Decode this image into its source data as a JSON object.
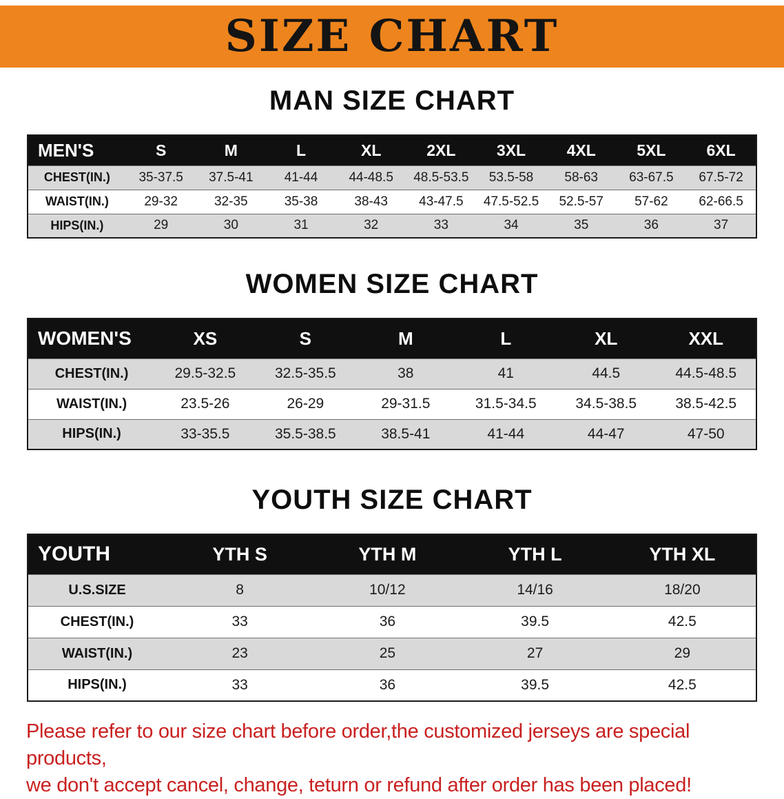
{
  "banner": {
    "title": "SIZE CHART",
    "bg_color": "#ee841d",
    "text_color": "#141414"
  },
  "sections": {
    "men": {
      "title": "MAN SIZE CHART",
      "table": {
        "corner": "MEN'S",
        "columns": [
          "S",
          "M",
          "L",
          "XL",
          "2XL",
          "3XL",
          "4XL",
          "5XL",
          "6XL"
        ],
        "rows": [
          {
            "label": "CHEST(IN.)",
            "values": [
              "35-37.5",
              "37.5-41",
              "41-44",
              "44-48.5",
              "48.5-53.5",
              "53.5-58",
              "58-63",
              "63-67.5",
              "67.5-72"
            ]
          },
          {
            "label": "WAIST(IN.)",
            "values": [
              "29-32",
              "32-35",
              "35-38",
              "38-43",
              "43-47.5",
              "47.5-52.5",
              "52.5-57",
              "57-62",
              "62-66.5"
            ]
          },
          {
            "label": "HIPS(IN.)",
            "values": [
              "29",
              "30",
              "31",
              "32",
              "33",
              "34",
              "35",
              "36",
              "37"
            ]
          }
        ]
      }
    },
    "women": {
      "title": "WOMEN SIZE CHART",
      "table": {
        "corner": "WOMEN'S",
        "columns": [
          "XS",
          "S",
          "M",
          "L",
          "XL",
          "XXL"
        ],
        "rows": [
          {
            "label": "CHEST(IN.)",
            "values": [
              "29.5-32.5",
              "32.5-35.5",
              "38",
              "41",
              "44.5",
              "44.5-48.5"
            ]
          },
          {
            "label": "WAIST(IN.)",
            "values": [
              "23.5-26",
              "26-29",
              "29-31.5",
              "31.5-34.5",
              "34.5-38.5",
              "38.5-42.5"
            ]
          },
          {
            "label": "HIPS(IN.)",
            "values": [
              "33-35.5",
              "35.5-38.5",
              "38.5-41",
              "41-44",
              "44-47",
              "47-50"
            ]
          }
        ]
      }
    },
    "youth": {
      "title": "YOUTH SIZE CHART",
      "table": {
        "corner": "YOUTH",
        "columns": [
          "YTH S",
          "YTH M",
          "YTH L",
          "YTH XL"
        ],
        "rows": [
          {
            "label": "U.S.SIZE",
            "values": [
              "8",
              "10/12",
              "14/16",
              "18/20"
            ]
          },
          {
            "label": "CHEST(IN.)",
            "values": [
              "33",
              "36",
              "39.5",
              "42.5"
            ]
          },
          {
            "label": "WAIST(IN.)",
            "values": [
              "23",
              "25",
              "27",
              "29"
            ]
          },
          {
            "label": "HIPS(IN.)",
            "values": [
              "33",
              "36",
              "39.5",
              "42.5"
            ]
          }
        ]
      }
    }
  },
  "footer": {
    "color": "#c92020",
    "lines": [
      "Please refer to our size chart before order,the customized jerseys are special products,",
      "we don't accept cancel, change, teturn or refund after order has been placed!"
    ]
  }
}
